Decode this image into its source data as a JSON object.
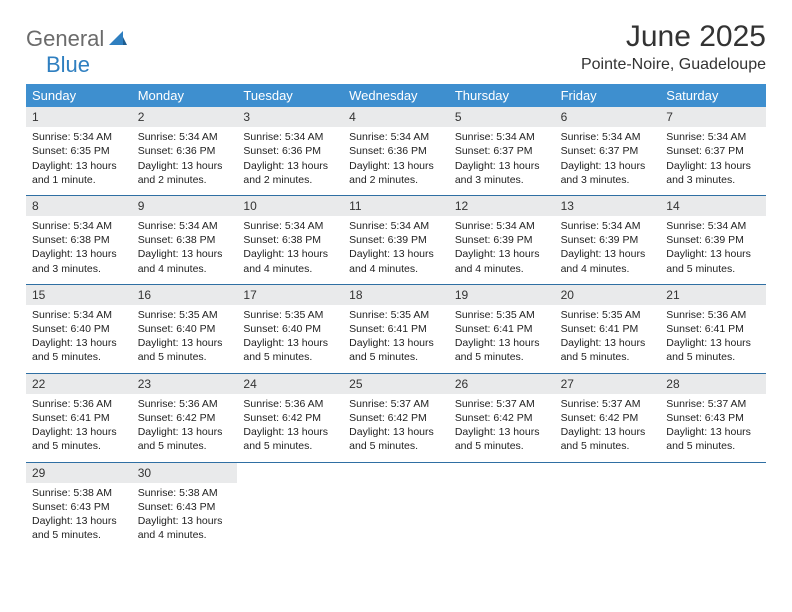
{
  "logo": {
    "text1": "General",
    "text2": "Blue"
  },
  "header": {
    "period": "June 2025",
    "location": "Pointe-Noire, Guadeloupe"
  },
  "day_names": [
    "Sunday",
    "Monday",
    "Tuesday",
    "Wednesday",
    "Thursday",
    "Friday",
    "Saturday"
  ],
  "colors": {
    "header_bg": "#3e8fcf",
    "week_divider": "#2f6fa3",
    "daynum_bg": "#e9eaeb",
    "logo_gray": "#6b6b6b",
    "logo_blue": "#2f7fc0"
  },
  "weeks": [
    [
      {
        "n": "1",
        "sr": "Sunrise: 5:34 AM",
        "ss": "Sunset: 6:35 PM",
        "dl": "Daylight: 13 hours and 1 minute."
      },
      {
        "n": "2",
        "sr": "Sunrise: 5:34 AM",
        "ss": "Sunset: 6:36 PM",
        "dl": "Daylight: 13 hours and 2 minutes."
      },
      {
        "n": "3",
        "sr": "Sunrise: 5:34 AM",
        "ss": "Sunset: 6:36 PM",
        "dl": "Daylight: 13 hours and 2 minutes."
      },
      {
        "n": "4",
        "sr": "Sunrise: 5:34 AM",
        "ss": "Sunset: 6:36 PM",
        "dl": "Daylight: 13 hours and 2 minutes."
      },
      {
        "n": "5",
        "sr": "Sunrise: 5:34 AM",
        "ss": "Sunset: 6:37 PM",
        "dl": "Daylight: 13 hours and 3 minutes."
      },
      {
        "n": "6",
        "sr": "Sunrise: 5:34 AM",
        "ss": "Sunset: 6:37 PM",
        "dl": "Daylight: 13 hours and 3 minutes."
      },
      {
        "n": "7",
        "sr": "Sunrise: 5:34 AM",
        "ss": "Sunset: 6:37 PM",
        "dl": "Daylight: 13 hours and 3 minutes."
      }
    ],
    [
      {
        "n": "8",
        "sr": "Sunrise: 5:34 AM",
        "ss": "Sunset: 6:38 PM",
        "dl": "Daylight: 13 hours and 3 minutes."
      },
      {
        "n": "9",
        "sr": "Sunrise: 5:34 AM",
        "ss": "Sunset: 6:38 PM",
        "dl": "Daylight: 13 hours and 4 minutes."
      },
      {
        "n": "10",
        "sr": "Sunrise: 5:34 AM",
        "ss": "Sunset: 6:38 PM",
        "dl": "Daylight: 13 hours and 4 minutes."
      },
      {
        "n": "11",
        "sr": "Sunrise: 5:34 AM",
        "ss": "Sunset: 6:39 PM",
        "dl": "Daylight: 13 hours and 4 minutes."
      },
      {
        "n": "12",
        "sr": "Sunrise: 5:34 AM",
        "ss": "Sunset: 6:39 PM",
        "dl": "Daylight: 13 hours and 4 minutes."
      },
      {
        "n": "13",
        "sr": "Sunrise: 5:34 AM",
        "ss": "Sunset: 6:39 PM",
        "dl": "Daylight: 13 hours and 4 minutes."
      },
      {
        "n": "14",
        "sr": "Sunrise: 5:34 AM",
        "ss": "Sunset: 6:39 PM",
        "dl": "Daylight: 13 hours and 5 minutes."
      }
    ],
    [
      {
        "n": "15",
        "sr": "Sunrise: 5:34 AM",
        "ss": "Sunset: 6:40 PM",
        "dl": "Daylight: 13 hours and 5 minutes."
      },
      {
        "n": "16",
        "sr": "Sunrise: 5:35 AM",
        "ss": "Sunset: 6:40 PM",
        "dl": "Daylight: 13 hours and 5 minutes."
      },
      {
        "n": "17",
        "sr": "Sunrise: 5:35 AM",
        "ss": "Sunset: 6:40 PM",
        "dl": "Daylight: 13 hours and 5 minutes."
      },
      {
        "n": "18",
        "sr": "Sunrise: 5:35 AM",
        "ss": "Sunset: 6:41 PM",
        "dl": "Daylight: 13 hours and 5 minutes."
      },
      {
        "n": "19",
        "sr": "Sunrise: 5:35 AM",
        "ss": "Sunset: 6:41 PM",
        "dl": "Daylight: 13 hours and 5 minutes."
      },
      {
        "n": "20",
        "sr": "Sunrise: 5:35 AM",
        "ss": "Sunset: 6:41 PM",
        "dl": "Daylight: 13 hours and 5 minutes."
      },
      {
        "n": "21",
        "sr": "Sunrise: 5:36 AM",
        "ss": "Sunset: 6:41 PM",
        "dl": "Daylight: 13 hours and 5 minutes."
      }
    ],
    [
      {
        "n": "22",
        "sr": "Sunrise: 5:36 AM",
        "ss": "Sunset: 6:41 PM",
        "dl": "Daylight: 13 hours and 5 minutes."
      },
      {
        "n": "23",
        "sr": "Sunrise: 5:36 AM",
        "ss": "Sunset: 6:42 PM",
        "dl": "Daylight: 13 hours and 5 minutes."
      },
      {
        "n": "24",
        "sr": "Sunrise: 5:36 AM",
        "ss": "Sunset: 6:42 PM",
        "dl": "Daylight: 13 hours and 5 minutes."
      },
      {
        "n": "25",
        "sr": "Sunrise: 5:37 AM",
        "ss": "Sunset: 6:42 PM",
        "dl": "Daylight: 13 hours and 5 minutes."
      },
      {
        "n": "26",
        "sr": "Sunrise: 5:37 AM",
        "ss": "Sunset: 6:42 PM",
        "dl": "Daylight: 13 hours and 5 minutes."
      },
      {
        "n": "27",
        "sr": "Sunrise: 5:37 AM",
        "ss": "Sunset: 6:42 PM",
        "dl": "Daylight: 13 hours and 5 minutes."
      },
      {
        "n": "28",
        "sr": "Sunrise: 5:37 AM",
        "ss": "Sunset: 6:43 PM",
        "dl": "Daylight: 13 hours and 5 minutes."
      }
    ],
    [
      {
        "n": "29",
        "sr": "Sunrise: 5:38 AM",
        "ss": "Sunset: 6:43 PM",
        "dl": "Daylight: 13 hours and 5 minutes."
      },
      {
        "n": "30",
        "sr": "Sunrise: 5:38 AM",
        "ss": "Sunset: 6:43 PM",
        "dl": "Daylight: 13 hours and 4 minutes."
      },
      null,
      null,
      null,
      null,
      null
    ]
  ]
}
